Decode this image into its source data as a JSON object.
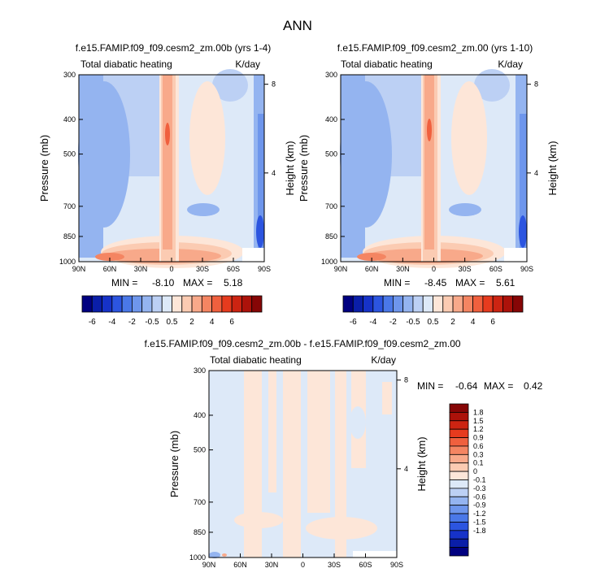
{
  "figure_title": "ANN",
  "colors": {
    "ramp_neg": [
      "#000080",
      "#0a1ea8",
      "#1632c8",
      "#2c55e0",
      "#4a78e8",
      "#6e96ec",
      "#94b4f0",
      "#bcd0f4",
      "#dde9f8"
    ],
    "ramp_pos": [
      "#fde6d8",
      "#fbcbb2",
      "#f8a98a",
      "#f48562",
      "#f0603e",
      "#e63b1e",
      "#cc2412",
      "#ac120a",
      "#860606"
    ]
  },
  "chart_data": [
    {
      "id": "panel1",
      "type": "heatmap",
      "title": "f.e15.FAMIP.f09_f09.cesm2_zm.00b (yrs 1-4)",
      "left_label": "Total diabatic heating",
      "right_label": "K/day",
      "ylabel": "Pressure (mb)",
      "ylabel_right": "Height (km)",
      "x_ticks": [
        "90N",
        "60N",
        "30N",
        "0",
        "30S",
        "60S",
        "90S"
      ],
      "x_tick_values": [
        90,
        60,
        30,
        0,
        -30,
        -60,
        -90
      ],
      "xlim": [
        90,
        -90
      ],
      "y_ticks": [
        "300",
        "400",
        "500",
        "700",
        "850",
        "1000"
      ],
      "y_tick_values": [
        300,
        400,
        500,
        700,
        850,
        1000
      ],
      "ylim": [
        1000,
        300
      ],
      "y_scale": "log",
      "height_ticks": [
        "8",
        "4"
      ],
      "height_tick_values": [
        8,
        4
      ],
      "min_label": "MIN = ",
      "min_value": "-8.10",
      "max_label": "MAX = ",
      "max_value": "5.18",
      "min": -8.1,
      "max": 5.18
    },
    {
      "id": "panel2",
      "type": "heatmap",
      "title": "f.e15.FAMIP.f09_f09.cesm2_zm.00 (yrs 1-10)",
      "left_label": "Total diabatic heating",
      "right_label": "K/day",
      "ylabel": "Pressure (mb)",
      "ylabel_right": "Height (km)",
      "x_ticks": [
        "90N",
        "60N",
        "30N",
        "0",
        "30S",
        "60S",
        "90S"
      ],
      "x_tick_values": [
        90,
        60,
        30,
        0,
        -30,
        -60,
        -90
      ],
      "xlim": [
        90,
        -90
      ],
      "y_ticks": [
        "300",
        "400",
        "500",
        "700",
        "850",
        "1000"
      ],
      "y_tick_values": [
        300,
        400,
        500,
        700,
        850,
        1000
      ],
      "ylim": [
        1000,
        300
      ],
      "y_scale": "log",
      "height_ticks": [
        "8",
        "4"
      ],
      "height_tick_values": [
        8,
        4
      ],
      "min_label": "MIN = ",
      "min_value": "-8.45",
      "max_label": "MAX = ",
      "max_value": "5.61",
      "min": -8.45,
      "max": 5.61
    },
    {
      "id": "panel3",
      "type": "heatmap",
      "title": "f.e15.FAMIP.f09_f09.cesm2_zm.00b - f.e15.FAMIP.f09_f09.cesm2_zm.00",
      "left_label": "Total diabatic heating",
      "right_label": "K/day",
      "ylabel": "Pressure (mb)",
      "ylabel_right": "Height (km)",
      "x_ticks": [
        "90N",
        "60N",
        "30N",
        "0",
        "30S",
        "60S",
        "90S"
      ],
      "x_tick_values": [
        90,
        60,
        30,
        0,
        -30,
        -60,
        -90
      ],
      "xlim": [
        90,
        -90
      ],
      "y_ticks": [
        "300",
        "400",
        "500",
        "700",
        "850",
        "1000"
      ],
      "y_tick_values": [
        300,
        400,
        500,
        700,
        850,
        1000
      ],
      "ylim": [
        1000,
        300
      ],
      "y_scale": "log",
      "height_ticks": [
        "8",
        "4"
      ],
      "height_tick_values": [
        8,
        4
      ],
      "min_label": "MIN = ",
      "min_value": "-0.64",
      "max_label": "MAX = ",
      "max_value": "0.42",
      "min": -0.64,
      "max": 0.42
    }
  ],
  "colorbar_main": {
    "orientation": "horizontal",
    "levels": [
      -6,
      -5,
      -4,
      -3,
      -2,
      -1,
      -0.5,
      0,
      0.5,
      1,
      2,
      3,
      4,
      5,
      6
    ],
    "labels": [
      "-6",
      "-4",
      "-2",
      "-0.5",
      "0.5",
      "2",
      "4",
      "6"
    ],
    "label_levels": [
      -6,
      -4,
      -2,
      -0.5,
      0.5,
      2,
      4,
      6
    ]
  },
  "colorbar_diff": {
    "orientation": "vertical",
    "levels": [
      1.8,
      1.5,
      1.2,
      0.9,
      0.6,
      0.3,
      0.1,
      0,
      -0.1,
      -0.3,
      -0.6,
      -0.9,
      -1.2,
      -1.5,
      -1.8
    ],
    "labels": [
      "1.8",
      "1.5",
      "1.2",
      "0.9",
      "0.6",
      "0.3",
      "0.1",
      "0",
      "-0.1",
      "-0.3",
      "-0.6",
      "-0.9",
      "-1.2",
      "-1.5",
      "-1.8"
    ]
  }
}
